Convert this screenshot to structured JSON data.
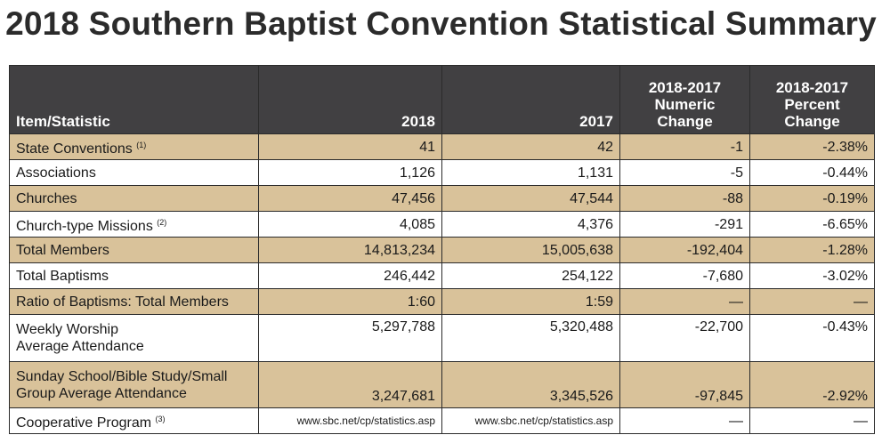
{
  "title": "2018 Southern Baptist Convention Statistical Summary",
  "headers": {
    "item": "Item/Statistic",
    "y2018": "2018",
    "y2017": "2017",
    "numeric_change": [
      "2018-2017",
      "Numeric",
      "Change"
    ],
    "percent_change": [
      "2018-2017",
      "Percent",
      "Change"
    ]
  },
  "rows": [
    {
      "label": "State Conventions",
      "note": "(1)",
      "y2018": "41",
      "y2017": "42",
      "numeric": "-1",
      "percent": "-2.38%"
    },
    {
      "label": "Associations",
      "y2018": "1,126",
      "y2017": "1,131",
      "numeric": "-5",
      "percent": "-0.44%"
    },
    {
      "label": "Churches",
      "y2018": "47,456",
      "y2017": "47,544",
      "numeric": "-88",
      "percent": "-0.19%"
    },
    {
      "label": "Church-type Missions",
      "note": "(2)",
      "y2018": "4,085",
      "y2017": "4,376",
      "numeric": "-291",
      "percent": "-6.65%"
    },
    {
      "label": "Total Members",
      "y2018": "14,813,234",
      "y2017": "15,005,638",
      "numeric": "-192,404",
      "percent": "-1.28%"
    },
    {
      "label": "Total Baptisms",
      "y2018": "246,442",
      "y2017": "254,122",
      "numeric": "-7,680",
      "percent": "-3.02%"
    },
    {
      "label": "Ratio of Baptisms: Total Members",
      "y2018": "1:60",
      "y2017": "1:59",
      "numeric": "—",
      "percent": "—"
    },
    {
      "label_lines": [
        "Weekly Worship",
        "Average Attendance"
      ],
      "y2018": "5,297,788",
      "y2017": "5,320,488",
      "numeric": "-22,700",
      "percent": "-0.43%"
    },
    {
      "label_lines": [
        "Sunday School/Bible Study/Small",
        "Group Average Attendance"
      ],
      "y2018": "3,247,681",
      "y2017": "3,345,526",
      "numeric": "-97,845",
      "percent": "-2.92%"
    },
    {
      "label": "Cooperative Program",
      "note": "(3)",
      "y2018": "www.sbc.net/cp/statistics.asp",
      "y2017": "www.sbc.net/cp/statistics.asp",
      "numeric": "—",
      "percent": "—"
    }
  ],
  "colors": {
    "header_bg": "#414042",
    "band_tan": "#d9c29a",
    "title": "#2b2b2b"
  }
}
